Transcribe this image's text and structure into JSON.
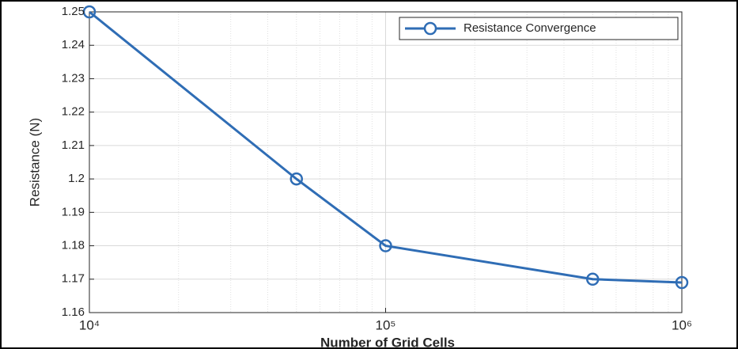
{
  "chart_data": {
    "type": "line",
    "x_label": "Number of Grid Cells",
    "y_label": "Resistance (N)",
    "x": [
      10000,
      50000,
      100000,
      500000,
      1000000
    ],
    "series": [
      {
        "name": "Resistance Convergence",
        "color": "#2f6db5",
        "values": [
          1.25,
          1.2,
          1.18,
          1.17,
          1.169
        ]
      }
    ],
    "xlog": true,
    "xlim": [
      10000,
      1000000
    ],
    "xticks": [
      {
        "value": 10000,
        "label": "10⁴"
      },
      {
        "value": 100000,
        "label": "10⁵"
      },
      {
        "value": 1000000,
        "label": "10⁶"
      }
    ],
    "xminorticks": [
      20000,
      30000,
      40000,
      50000,
      60000,
      70000,
      80000,
      90000,
      200000,
      300000,
      400000,
      500000,
      600000,
      700000,
      800000,
      900000
    ],
    "ylim": [
      1.16,
      1.25
    ],
    "yticks": [
      1.16,
      1.17,
      1.18,
      1.19,
      1.2,
      1.21,
      1.22,
      1.23,
      1.24,
      1.25
    ],
    "grid": true,
    "minor_grid": true,
    "legend": "northeast"
  }
}
